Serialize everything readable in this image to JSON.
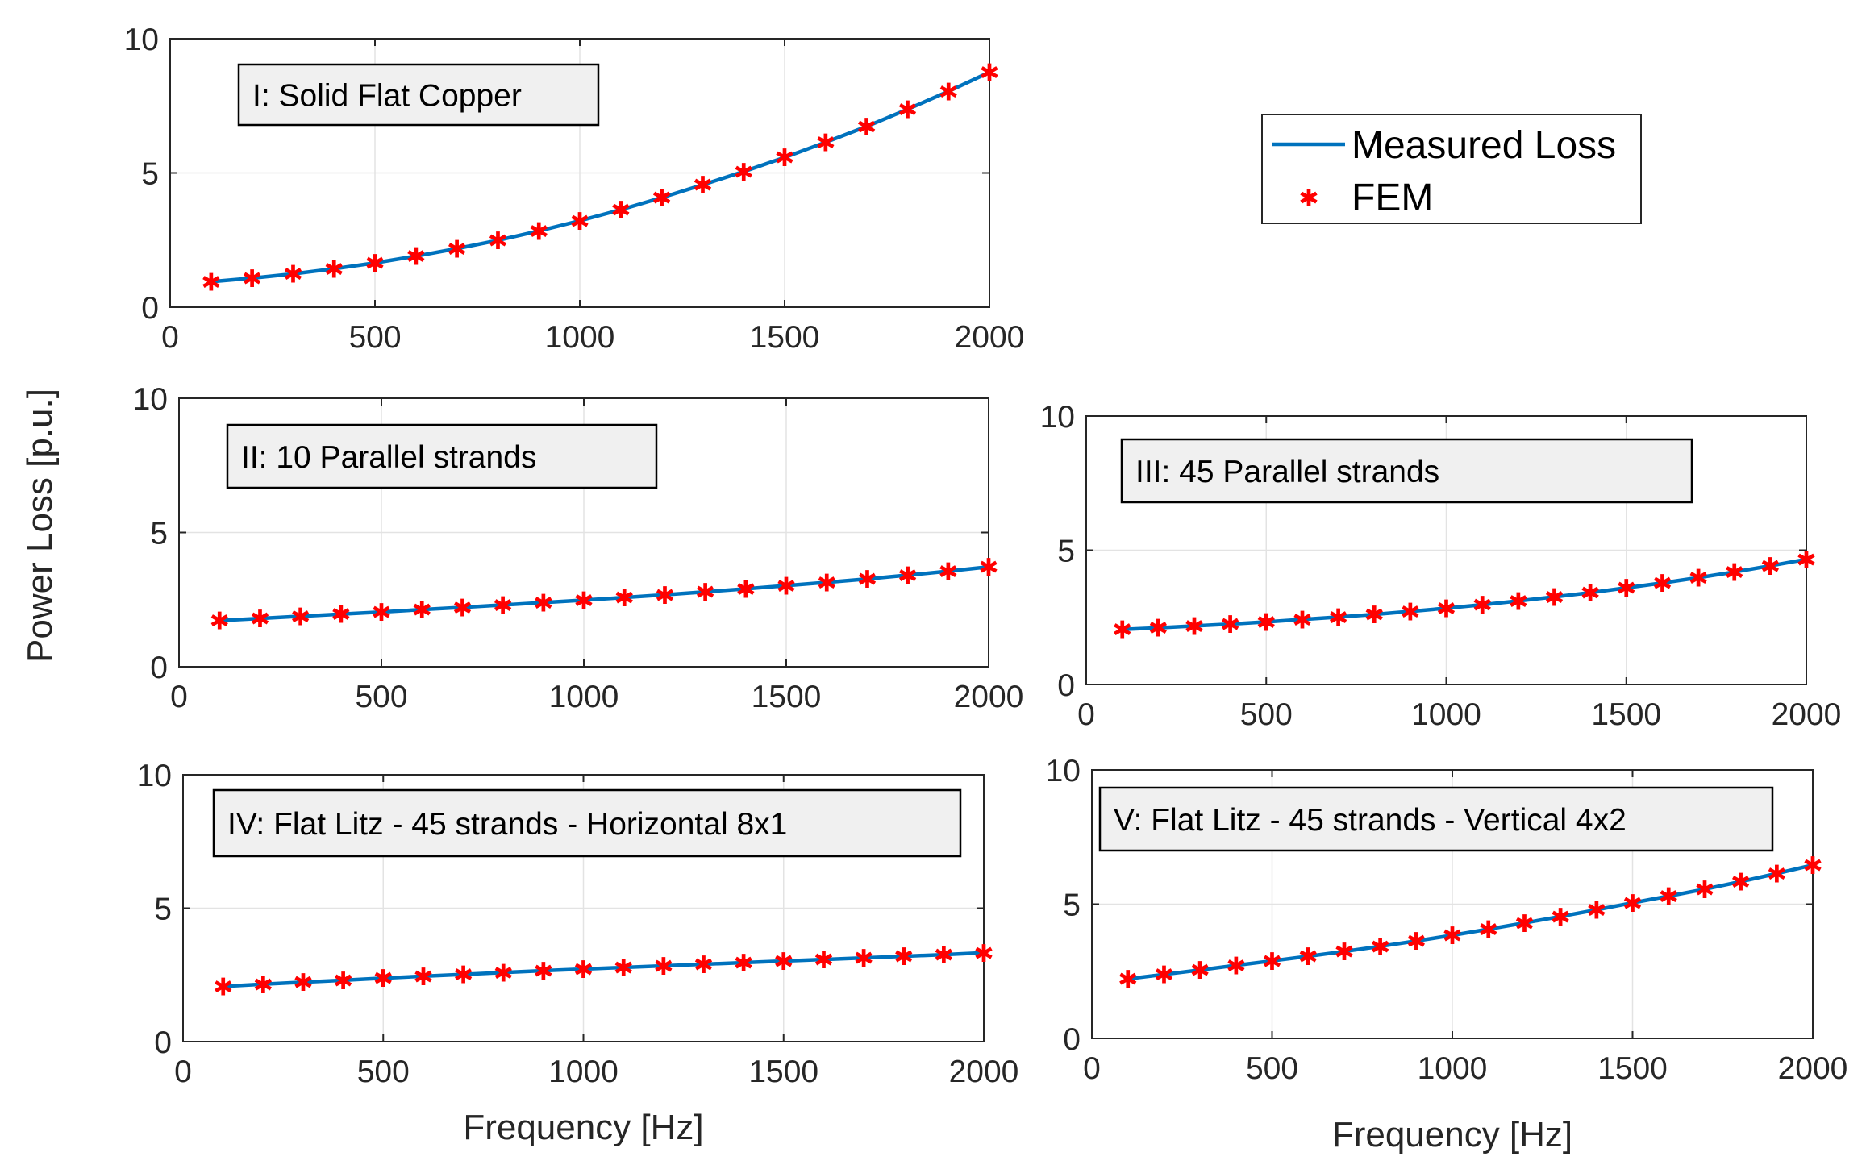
{
  "chart_data": [
    {
      "type": "line",
      "panel": "I",
      "annotation": "I: Solid Flat Copper",
      "x": [
        100,
        200,
        300,
        400,
        500,
        600,
        700,
        800,
        900,
        1000,
        1100,
        1200,
        1300,
        1400,
        1500,
        1600,
        1700,
        1800,
        1900,
        2000
      ],
      "series": [
        {
          "name": "Measured Loss",
          "values": [
            0.95,
            1.08,
            1.24,
            1.43,
            1.65,
            1.9,
            2.18,
            2.49,
            2.84,
            3.22,
            3.63,
            4.08,
            4.56,
            5.05,
            5.58,
            6.14,
            6.73,
            7.37,
            8.04,
            8.75
          ]
        },
        {
          "name": "FEM",
          "values": [
            0.95,
            1.08,
            1.24,
            1.43,
            1.65,
            1.9,
            2.18,
            2.49,
            2.84,
            3.22,
            3.63,
            4.08,
            4.56,
            5.05,
            5.58,
            6.14,
            6.73,
            7.37,
            8.04,
            8.75
          ]
        }
      ],
      "xlim": [
        0,
        2000
      ],
      "ylim": [
        0,
        10
      ],
      "xticks": [
        "0",
        "500",
        "1000",
        "1500",
        "2000"
      ],
      "yticks": [
        "0",
        "5",
        "10"
      ],
      "xlabel": "",
      "grid": true
    },
    {
      "type": "line",
      "panel": "II",
      "annotation": "II: 10 Parallel strands",
      "x": [
        100,
        200,
        300,
        400,
        500,
        600,
        700,
        800,
        900,
        1000,
        1100,
        1200,
        1300,
        1400,
        1500,
        1600,
        1700,
        1800,
        1900,
        2000
      ],
      "series": [
        {
          "name": "Measured Loss",
          "values": [
            1.72,
            1.8,
            1.88,
            1.96,
            2.04,
            2.13,
            2.21,
            2.3,
            2.39,
            2.48,
            2.58,
            2.68,
            2.79,
            2.9,
            3.02,
            3.14,
            3.27,
            3.41,
            3.56,
            3.72
          ]
        },
        {
          "name": "FEM",
          "values": [
            1.72,
            1.8,
            1.88,
            1.96,
            2.04,
            2.13,
            2.21,
            2.3,
            2.39,
            2.48,
            2.58,
            2.68,
            2.79,
            2.9,
            3.02,
            3.14,
            3.27,
            3.41,
            3.56,
            3.72
          ]
        }
      ],
      "xlim": [
        0,
        2000
      ],
      "ylim": [
        0,
        10
      ],
      "xticks": [
        "0",
        "500",
        "1000",
        "1500",
        "2000"
      ],
      "yticks": [
        "0",
        "5",
        "10"
      ],
      "xlabel": "",
      "grid": true
    },
    {
      "type": "line",
      "panel": "III",
      "annotation": "III: 45 Parallel strands",
      "x": [
        100,
        200,
        300,
        400,
        500,
        600,
        700,
        800,
        900,
        1000,
        1100,
        1200,
        1300,
        1400,
        1500,
        1600,
        1700,
        1800,
        1900,
        2000
      ],
      "series": [
        {
          "name": "Measured Loss",
          "values": [
            2.05,
            2.11,
            2.18,
            2.25,
            2.33,
            2.42,
            2.51,
            2.61,
            2.72,
            2.84,
            2.97,
            3.11,
            3.26,
            3.42,
            3.6,
            3.78,
            3.98,
            4.19,
            4.42,
            4.66
          ]
        },
        {
          "name": "FEM",
          "values": [
            2.05,
            2.11,
            2.18,
            2.25,
            2.33,
            2.42,
            2.51,
            2.61,
            2.72,
            2.84,
            2.97,
            3.11,
            3.26,
            3.42,
            3.6,
            3.78,
            3.98,
            4.19,
            4.42,
            4.66
          ]
        }
      ],
      "xlim": [
        0,
        2000
      ],
      "ylim": [
        0,
        10
      ],
      "xticks": [
        "0",
        "500",
        "1000",
        "1500",
        "2000"
      ],
      "yticks": [
        "0",
        "5",
        "10"
      ],
      "xlabel": "",
      "grid": true
    },
    {
      "type": "line",
      "panel": "IV",
      "annotation": "IV: Flat Litz - 45 strands - Horizontal 8x1",
      "x": [
        100,
        200,
        300,
        400,
        500,
        600,
        700,
        800,
        900,
        1000,
        1100,
        1200,
        1300,
        1400,
        1500,
        1600,
        1700,
        1800,
        1900,
        2000
      ],
      "series": [
        {
          "name": "Measured Loss",
          "values": [
            2.07,
            2.15,
            2.23,
            2.3,
            2.38,
            2.45,
            2.52,
            2.59,
            2.66,
            2.72,
            2.78,
            2.84,
            2.9,
            2.96,
            3.02,
            3.08,
            3.14,
            3.2,
            3.26,
            3.33
          ]
        },
        {
          "name": "FEM",
          "values": [
            2.07,
            2.15,
            2.23,
            2.3,
            2.38,
            2.45,
            2.52,
            2.59,
            2.66,
            2.72,
            2.78,
            2.84,
            2.9,
            2.96,
            3.02,
            3.08,
            3.14,
            3.2,
            3.26,
            3.33
          ]
        }
      ],
      "xlim": [
        0,
        2000
      ],
      "ylim": [
        0,
        10
      ],
      "xticks": [
        "0",
        "500",
        "1000",
        "1500",
        "2000"
      ],
      "yticks": [
        "0",
        "5",
        "10"
      ],
      "xlabel": "Frequency [Hz]",
      "grid": true
    },
    {
      "type": "line",
      "panel": "V",
      "annotation": "V: Flat Litz - 45 strands - Vertical 4x2",
      "x": [
        100,
        200,
        300,
        400,
        500,
        600,
        700,
        800,
        900,
        1000,
        1100,
        1200,
        1300,
        1400,
        1500,
        1600,
        1700,
        1800,
        1900,
        2000
      ],
      "series": [
        {
          "name": "Measured Loss",
          "values": [
            2.22,
            2.38,
            2.55,
            2.72,
            2.89,
            3.06,
            3.24,
            3.43,
            3.63,
            3.84,
            4.07,
            4.3,
            4.54,
            4.79,
            5.05,
            5.3,
            5.56,
            5.84,
            6.14,
            6.46
          ]
        },
        {
          "name": "FEM",
          "values": [
            2.22,
            2.38,
            2.55,
            2.72,
            2.89,
            3.06,
            3.24,
            3.43,
            3.63,
            3.84,
            4.07,
            4.3,
            4.54,
            4.79,
            5.05,
            5.3,
            5.56,
            5.84,
            6.14,
            6.46
          ]
        }
      ],
      "xlim": [
        0,
        2000
      ],
      "ylim": [
        0,
        10
      ],
      "xticks": [
        "0",
        "500",
        "1000",
        "1500",
        "2000"
      ],
      "yticks": [
        "0",
        "5",
        "10"
      ],
      "xlabel": "Frequency [Hz]",
      "grid": true
    }
  ],
  "shared": {
    "ylabel": "Power Loss [p.u.]",
    "legend": {
      "placement": "top-right",
      "entries": [
        "Measured Loss",
        "FEM"
      ]
    },
    "colors": {
      "line": "#0072bd",
      "marker": "#ff0000",
      "annotation_fill": "#f0f0f0",
      "grid": "#e3e3e3",
      "axis": "#262626"
    },
    "marker_glyph": "✱"
  }
}
